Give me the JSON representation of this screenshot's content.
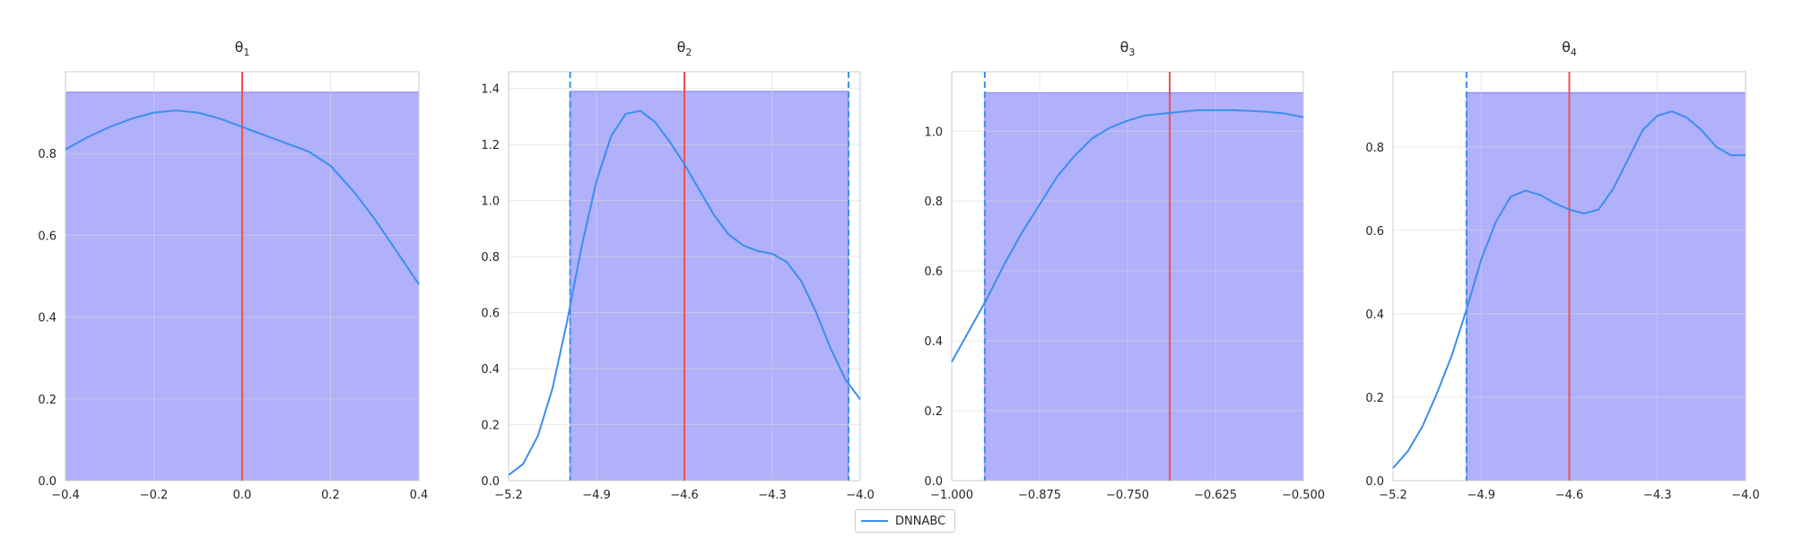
{
  "colors": {
    "region_fill": "#b0b0fb",
    "region_edge": "#8080f0",
    "density": "#3b8ef0",
    "true_value": "#f05050",
    "bound_line": "#3b8ef0",
    "grid": "#d9d9d9",
    "axes_edge": "#cccccc"
  },
  "legend": {
    "label": "DNNABC"
  },
  "chart_data": [
    {
      "type": "line",
      "title": {
        "symbol": "θ",
        "subscript": "1"
      },
      "xlim": [
        -0.4,
        0.4
      ],
      "ylim": [
        0,
        1.0
      ],
      "xticks": [
        -0.4,
        -0.2,
        0.0,
        0.2,
        0.4
      ],
      "xtick_labels": [
        "−0.4",
        "−0.2",
        "0.0",
        "0.2",
        "0.4"
      ],
      "yticks": [
        0.0,
        0.2,
        0.4,
        0.6,
        0.8
      ],
      "ytick_labels": [
        "0.0",
        "0.2",
        "0.4",
        "0.6",
        "0.8"
      ],
      "region": {
        "x0": -0.4,
        "x1": 0.4,
        "height": 0.95
      },
      "bounds": [],
      "true_value": 0.0,
      "series": [
        {
          "name": "DNNABC",
          "x": [
            -0.4,
            -0.35,
            -0.3,
            -0.25,
            -0.2,
            -0.15,
            -0.1,
            -0.05,
            0.0,
            0.05,
            0.1,
            0.15,
            0.2,
            0.25,
            0.3,
            0.35,
            0.4
          ],
          "y": [
            0.81,
            0.84,
            0.865,
            0.885,
            0.9,
            0.905,
            0.9,
            0.885,
            0.865,
            0.845,
            0.825,
            0.805,
            0.77,
            0.71,
            0.64,
            0.56,
            0.48
          ]
        }
      ]
    },
    {
      "type": "line",
      "title": {
        "symbol": "θ",
        "subscript": "2"
      },
      "xlim": [
        -5.2,
        -4.0
      ],
      "ylim": [
        0,
        1.46
      ],
      "xticks": [
        -5.2,
        -4.9,
        -4.6,
        -4.3,
        -4.0
      ],
      "xtick_labels": [
        "−5.2",
        "−4.9",
        "−4.6",
        "−4.3",
        "−4.0"
      ],
      "yticks": [
        0.0,
        0.2,
        0.4,
        0.6,
        0.8,
        1.0,
        1.2,
        1.4
      ],
      "ytick_labels": [
        "0.0",
        "0.2",
        "0.4",
        "0.6",
        "0.8",
        "1.0",
        "1.2",
        "1.4"
      ],
      "region": {
        "x0": -4.99,
        "x1": -4.04,
        "height": 1.39
      },
      "bounds": [
        -4.99,
        -4.04
      ],
      "true_value": -4.6,
      "series": [
        {
          "name": "DNNABC",
          "x": [
            -5.2,
            -5.15,
            -5.1,
            -5.05,
            -5.0,
            -4.95,
            -4.9,
            -4.85,
            -4.8,
            -4.75,
            -4.7,
            -4.65,
            -4.6,
            -4.55,
            -4.5,
            -4.45,
            -4.4,
            -4.35,
            -4.3,
            -4.25,
            -4.2,
            -4.15,
            -4.1,
            -4.05,
            -4.0
          ],
          "y": [
            0.02,
            0.06,
            0.16,
            0.33,
            0.57,
            0.84,
            1.07,
            1.23,
            1.31,
            1.32,
            1.28,
            1.21,
            1.13,
            1.04,
            0.95,
            0.88,
            0.84,
            0.82,
            0.81,
            0.78,
            0.71,
            0.6,
            0.47,
            0.36,
            0.29
          ]
        }
      ]
    },
    {
      "type": "line",
      "title": {
        "symbol": "θ",
        "subscript": "3"
      },
      "xlim": [
        -1.0,
        -0.5
      ],
      "ylim": [
        0,
        1.17
      ],
      "xticks": [
        -1.0,
        -0.875,
        -0.75,
        -0.625,
        -0.5
      ],
      "xtick_labels": [
        "−1.000",
        "−0.875",
        "−0.750",
        "−0.625",
        "−0.500"
      ],
      "yticks": [
        0.0,
        0.2,
        0.4,
        0.6,
        0.8,
        1.0
      ],
      "ytick_labels": [
        "0.0",
        "0.2",
        "0.4",
        "0.6",
        "0.8",
        "1.0"
      ],
      "region": {
        "x0": -0.953,
        "x1": -0.5,
        "height": 1.11
      },
      "bounds": [
        -0.953
      ],
      "true_value": -0.69,
      "series": [
        {
          "name": "DNNABC",
          "x": [
            -1.0,
            -0.975,
            -0.95,
            -0.925,
            -0.9,
            -0.875,
            -0.85,
            -0.825,
            -0.8,
            -0.775,
            -0.75,
            -0.725,
            -0.7,
            -0.675,
            -0.65,
            -0.625,
            -0.6,
            -0.575,
            -0.55,
            -0.525,
            -0.5
          ],
          "y": [
            0.34,
            0.43,
            0.52,
            0.62,
            0.71,
            0.79,
            0.87,
            0.93,
            0.98,
            1.01,
            1.03,
            1.045,
            1.05,
            1.055,
            1.06,
            1.06,
            1.06,
            1.058,
            1.055,
            1.05,
            1.04
          ]
        }
      ]
    },
    {
      "type": "line",
      "title": {
        "symbol": "θ",
        "subscript": "4"
      },
      "xlim": [
        -5.2,
        -4.0
      ],
      "ylim": [
        0,
        0.98
      ],
      "xticks": [
        -5.2,
        -4.9,
        -4.6,
        -4.3,
        -4.0
      ],
      "xtick_labels": [
        "−5.2",
        "−4.9",
        "−4.6",
        "−4.3",
        "−4.0"
      ],
      "yticks": [
        0.0,
        0.2,
        0.4,
        0.6,
        0.8
      ],
      "ytick_labels": [
        "0.0",
        "0.2",
        "0.4",
        "0.6",
        "0.8"
      ],
      "region": {
        "x0": -4.95,
        "x1": -4.0,
        "height": 0.93
      },
      "bounds": [
        -4.95
      ],
      "true_value": -4.6,
      "series": [
        {
          "name": "DNNABC",
          "x": [
            -5.2,
            -5.15,
            -5.1,
            -5.05,
            -5.0,
            -4.95,
            -4.9,
            -4.85,
            -4.8,
            -4.75,
            -4.7,
            -4.65,
            -4.6,
            -4.55,
            -4.5,
            -4.45,
            -4.4,
            -4.35,
            -4.3,
            -4.25,
            -4.2,
            -4.15,
            -4.1,
            -4.05,
            -4.0
          ],
          "y": [
            0.03,
            0.07,
            0.13,
            0.21,
            0.3,
            0.41,
            0.53,
            0.62,
            0.68,
            0.695,
            0.685,
            0.665,
            0.65,
            0.64,
            0.65,
            0.7,
            0.77,
            0.84,
            0.875,
            0.885,
            0.87,
            0.84,
            0.8,
            0.78,
            0.78
          ]
        }
      ]
    }
  ]
}
